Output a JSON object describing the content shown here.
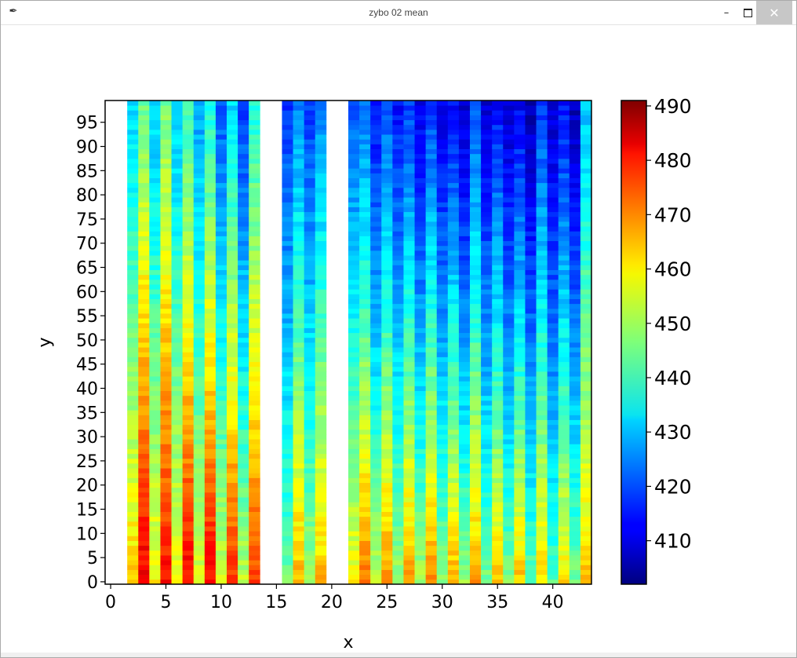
{
  "window": {
    "title": "zybo 02 mean",
    "app_icon": "feather-icon",
    "minimize_icon": "minimize-icon",
    "maximize_icon": "maximize-icon",
    "close_icon": "close-icon"
  },
  "chart_data": {
    "type": "heatmap",
    "title": "",
    "xlabel": "x",
    "ylabel": "y",
    "x_ticks": [
      "0",
      "5",
      "10",
      "15",
      "20",
      "25",
      "30",
      "35",
      "40"
    ],
    "y_ticks": [
      "0",
      "5",
      "10",
      "15",
      "20",
      "25",
      "30",
      "35",
      "40",
      "45",
      "50",
      "55",
      "60",
      "65",
      "70",
      "75",
      "80",
      "85",
      "90",
      "95"
    ],
    "colorbar_ticks": [
      "410",
      "420",
      "430",
      "440",
      "450",
      "460",
      "470",
      "480",
      "490"
    ],
    "xlim": [
      -0.5,
      43.5
    ],
    "ylim": [
      -0.5,
      99.5
    ],
    "value_range": [
      402,
      491
    ],
    "colormap": "jet",
    "empty_columns": [
      0,
      1,
      14,
      15,
      20,
      21
    ],
    "columns": [
      {
        "x": 2,
        "bottom": 462,
        "top": 432
      },
      {
        "x": 3,
        "bottom": 482,
        "top": 445
      },
      {
        "x": 4,
        "bottom": 458,
        "top": 430
      },
      {
        "x": 5,
        "bottom": 480,
        "top": 446
      },
      {
        "x": 6,
        "bottom": 458,
        "top": 430
      },
      {
        "x": 7,
        "bottom": 481,
        "top": 440
      },
      {
        "x": 8,
        "bottom": 456,
        "top": 427
      },
      {
        "x": 9,
        "bottom": 481,
        "top": 437
      },
      {
        "x": 10,
        "bottom": 455,
        "top": 420
      },
      {
        "x": 11,
        "bottom": 477,
        "top": 432
      },
      {
        "x": 12,
        "bottom": 452,
        "top": 418
      },
      {
        "x": 13,
        "bottom": 475,
        "top": 438
      },
      {
        "x": 16,
        "bottom": 445,
        "top": 418
      },
      {
        "x": 17,
        "bottom": 465,
        "top": 425
      },
      {
        "x": 18,
        "bottom": 450,
        "top": 418
      },
      {
        "x": 19,
        "bottom": 464,
        "top": 425
      },
      {
        "x": 22,
        "bottom": 458,
        "top": 420
      },
      {
        "x": 23,
        "bottom": 470,
        "top": 423
      },
      {
        "x": 24,
        "bottom": 452,
        "top": 414
      },
      {
        "x": 25,
        "bottom": 468,
        "top": 420
      },
      {
        "x": 26,
        "bottom": 450,
        "top": 414
      },
      {
        "x": 27,
        "bottom": 467,
        "top": 418
      },
      {
        "x": 28,
        "bottom": 450,
        "top": 411
      },
      {
        "x": 29,
        "bottom": 468,
        "top": 418
      },
      {
        "x": 30,
        "bottom": 448,
        "top": 411
      },
      {
        "x": 31,
        "bottom": 465,
        "top": 414
      },
      {
        "x": 32,
        "bottom": 449,
        "top": 408
      },
      {
        "x": 33,
        "bottom": 466,
        "top": 420
      },
      {
        "x": 34,
        "bottom": 446,
        "top": 410
      },
      {
        "x": 35,
        "bottom": 463,
        "top": 414
      },
      {
        "x": 36,
        "bottom": 446,
        "top": 408
      },
      {
        "x": 37,
        "bottom": 463,
        "top": 412
      },
      {
        "x": 38,
        "bottom": 444,
        "top": 406
      },
      {
        "x": 39,
        "bottom": 461,
        "top": 418
      },
      {
        "x": 40,
        "bottom": 443,
        "top": 408
      },
      {
        "x": 41,
        "bottom": 460,
        "top": 414
      },
      {
        "x": 42,
        "bottom": 446,
        "top": 407
      },
      {
        "x": 43,
        "bottom": 463,
        "top": 430
      }
    ]
  }
}
